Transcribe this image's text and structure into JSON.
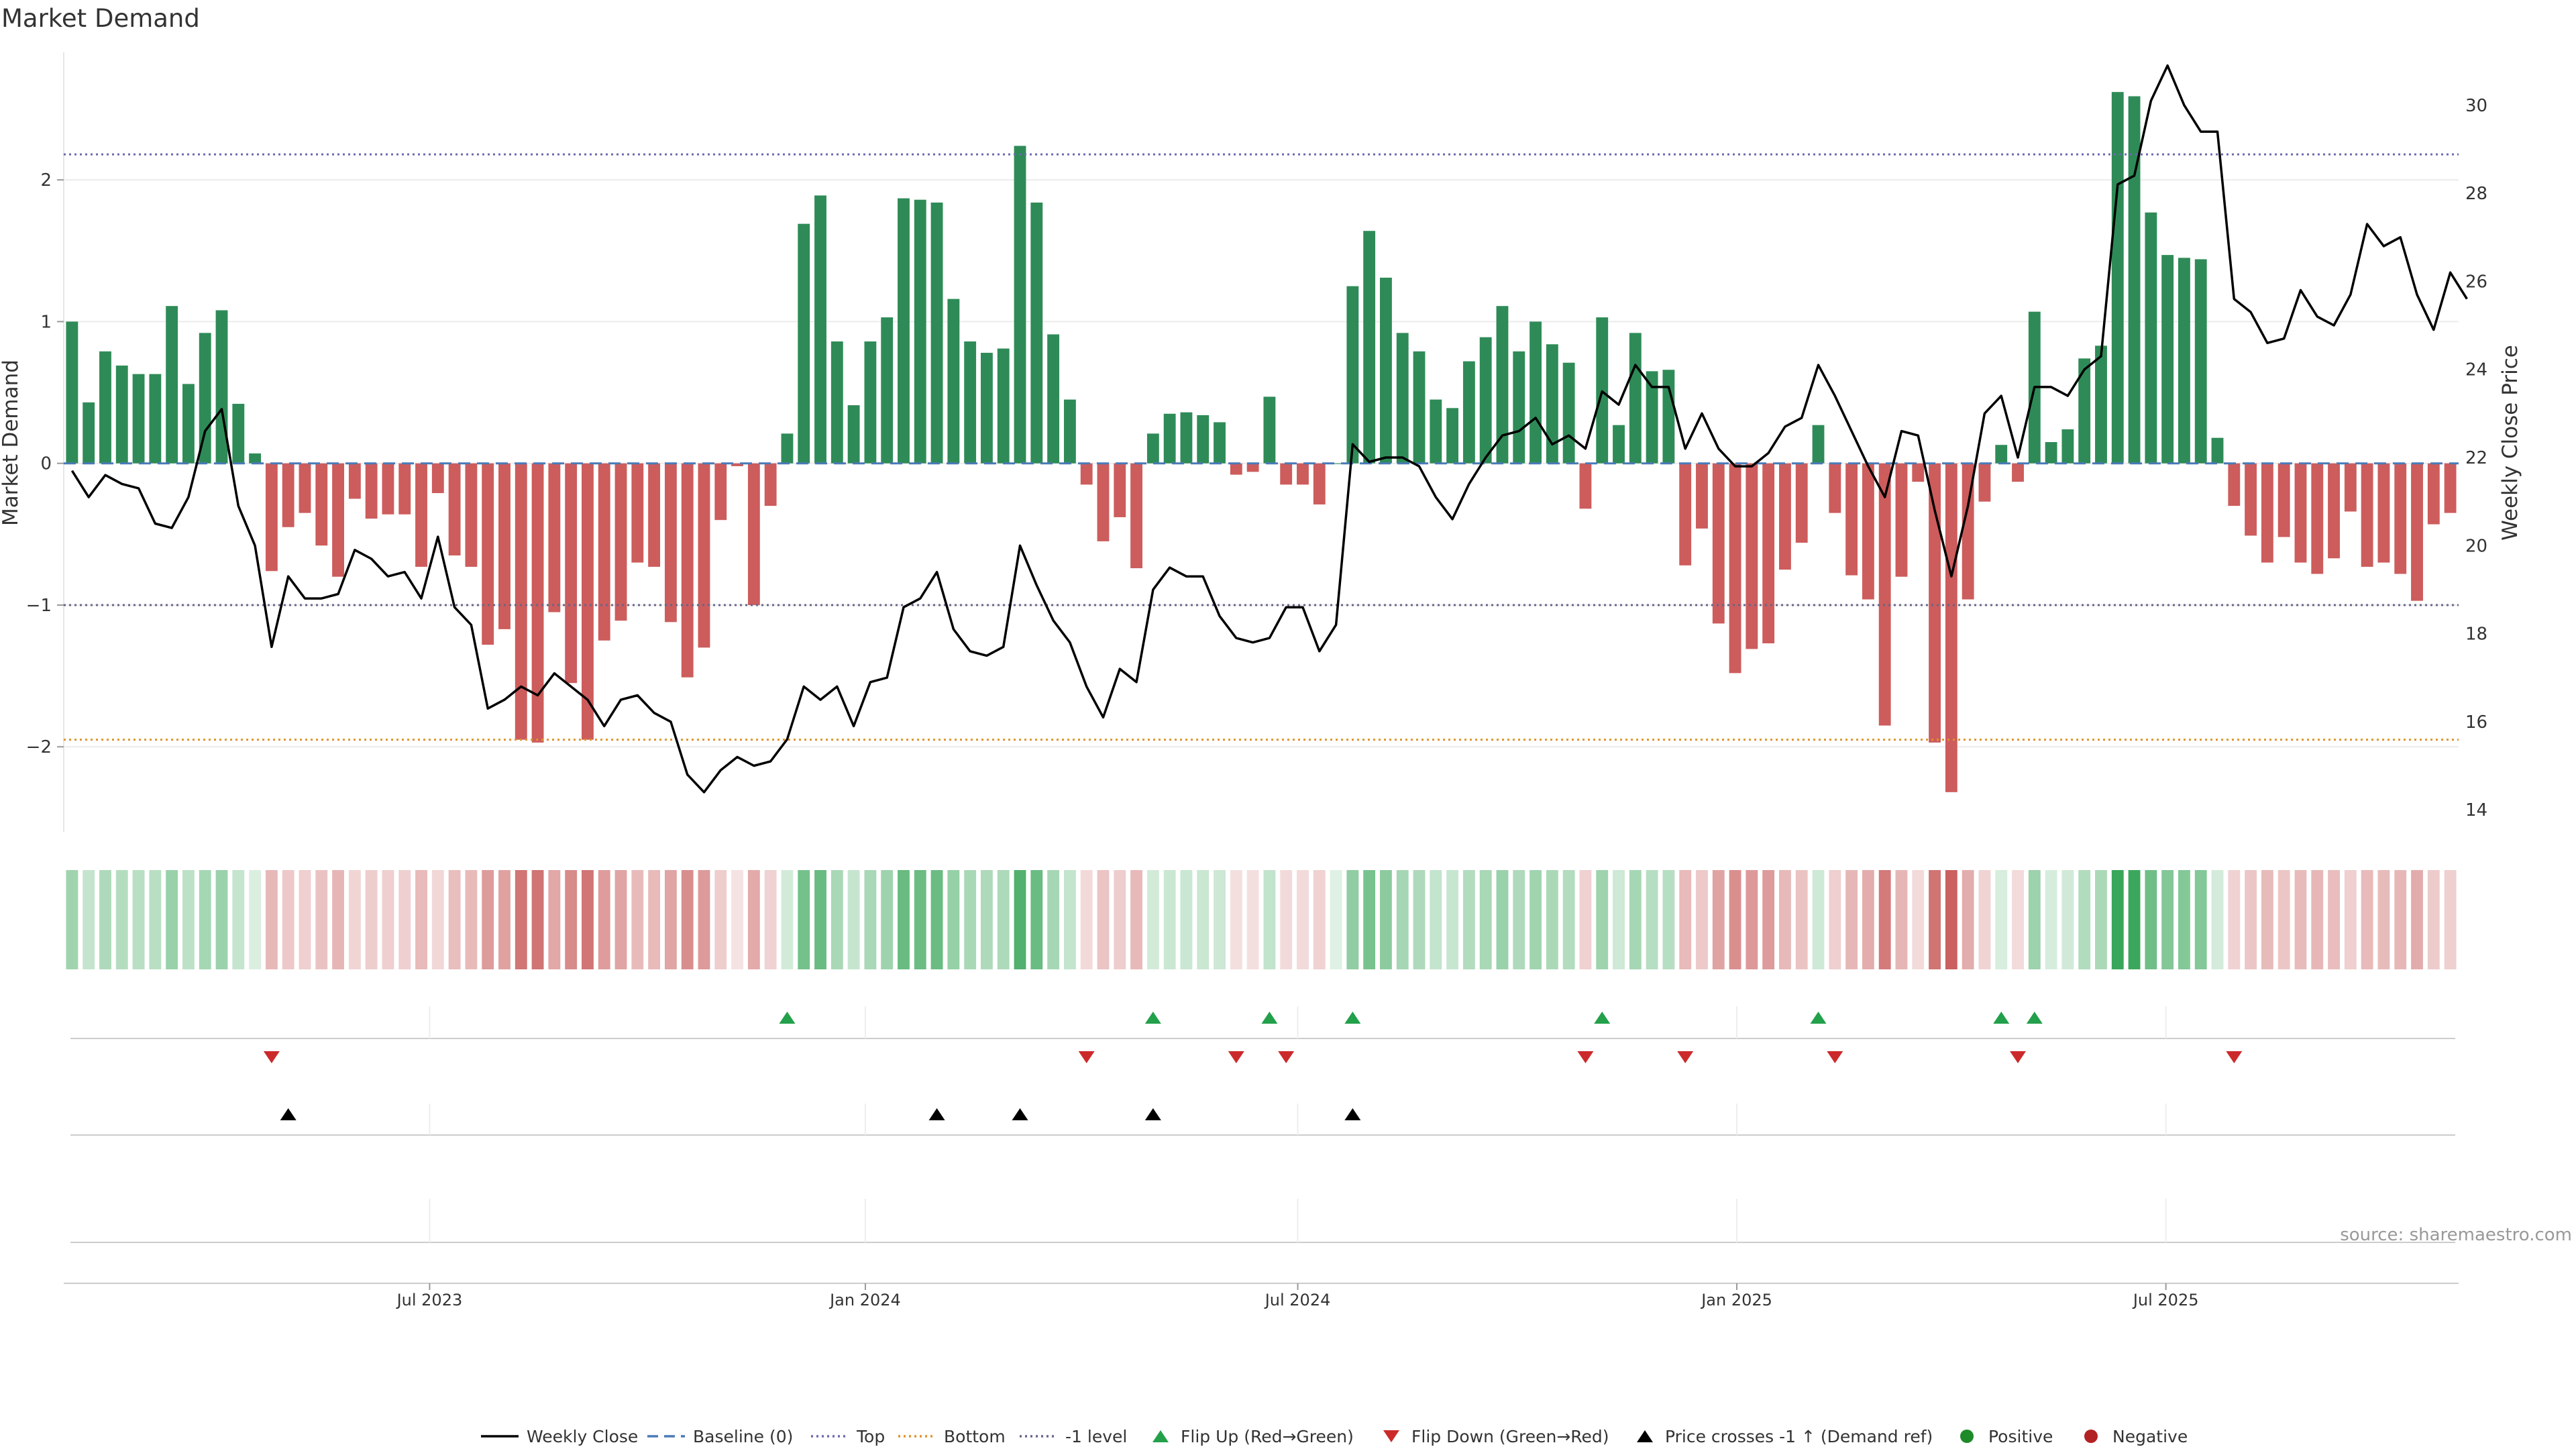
{
  "chart_data": {
    "type": "bar",
    "title": "Market Demand",
    "ylabel_left": "Market Demand",
    "ylabel_right": "Weekly Close Price",
    "ylim_left": [
      -2.6,
      2.9
    ],
    "ylim_right": [
      13.5,
      31.2
    ],
    "yticks_left": [
      {
        "v": 2,
        "label": "2"
      },
      {
        "v": 1,
        "label": "1"
      },
      {
        "v": 0,
        "label": "0"
      },
      {
        "v": -1,
        "label": "−1"
      },
      {
        "v": -2,
        "label": "−2"
      }
    ],
    "yticks_right": [
      {
        "v": 30,
        "label": "30"
      },
      {
        "v": 28,
        "label": "28"
      },
      {
        "v": 26,
        "label": "26"
      },
      {
        "v": 24,
        "label": "24"
      },
      {
        "v": 22,
        "label": "22"
      },
      {
        "v": 20,
        "label": "20"
      },
      {
        "v": 18,
        "label": "18"
      },
      {
        "v": 16,
        "label": "16"
      },
      {
        "v": 14,
        "label": "14"
      }
    ],
    "top_level": 2.18,
    "bottom_level": -1.95,
    "minus_one_level": -1,
    "x_ticks": [
      {
        "i": 21.5,
        "label": "Jul 2023"
      },
      {
        "i": 47.7,
        "label": "Jan 2024"
      },
      {
        "i": 73.7,
        "label": "Jul 2024"
      },
      {
        "i": 100.1,
        "label": "Jan 2025"
      },
      {
        "i": 125.9,
        "label": "Jul 2025"
      }
    ],
    "demand": [
      1.0,
      0.43,
      0.79,
      0.69,
      0.63,
      0.63,
      1.11,
      0.56,
      0.92,
      1.08,
      0.42,
      0.07,
      -0.76,
      -0.45,
      -0.35,
      -0.58,
      -0.8,
      -0.25,
      -0.39,
      -0.36,
      -0.36,
      -0.73,
      -0.21,
      -0.65,
      -0.73,
      -1.28,
      -1.17,
      -1.95,
      -1.97,
      -1.05,
      -1.55,
      -1.95,
      -1.25,
      -1.11,
      -0.7,
      -0.73,
      -1.12,
      -1.51,
      -1.3,
      -0.4,
      -0.02,
      -1.0,
      -0.3,
      0.21,
      1.69,
      1.89,
      0.86,
      0.41,
      0.86,
      1.03,
      1.87,
      1.86,
      1.84,
      1.16,
      0.86,
      0.78,
      0.81,
      2.24,
      1.84,
      0.91,
      0.45,
      -0.15,
      -0.55,
      -0.38,
      -0.74,
      0.21,
      0.35,
      0.36,
      0.34,
      0.29,
      -0.08,
      -0.06,
      0.47,
      -0.15,
      -0.15,
      -0.29,
      0.0,
      1.25,
      1.64,
      1.31,
      0.92,
      0.79,
      0.45,
      0.39,
      0.72,
      0.89,
      1.11,
      0.79,
      1.0,
      0.84,
      0.71,
      -0.32,
      1.03,
      0.27,
      0.92,
      0.65,
      0.66,
      -0.72,
      -0.46,
      -1.13,
      -1.48,
      -1.31,
      -1.27,
      -0.75,
      -0.56,
      0.27,
      -0.35,
      -0.79,
      -0.96,
      -1.85,
      -0.8,
      -0.13,
      -1.97,
      -2.32,
      -0.96,
      -0.27,
      0.13,
      -0.13,
      1.07,
      0.15,
      0.24,
      0.74,
      0.83,
      2.62,
      2.59,
      1.77,
      1.47,
      1.45,
      1.44,
      0.18,
      -0.3,
      -0.51,
      -0.7,
      -0.52,
      -0.7,
      -0.78,
      -0.67,
      -0.34,
      -0.73,
      -0.7,
      -0.78,
      -0.97,
      -0.43,
      -0.35
    ],
    "weekly_close": [
      21.7,
      21.1,
      21.6,
      21.4,
      21.3,
      20.5,
      20.4,
      21.1,
      22.6,
      23.1,
      20.9,
      20.0,
      17.7,
      19.3,
      18.8,
      18.8,
      18.9,
      19.9,
      19.7,
      19.3,
      19.4,
      18.8,
      20.2,
      18.6,
      18.2,
      16.3,
      16.5,
      16.8,
      16.6,
      17.1,
      16.8,
      16.5,
      15.9,
      16.5,
      16.6,
      16.2,
      16.0,
      14.8,
      14.4,
      14.9,
      15.2,
      15.0,
      15.1,
      15.6,
      16.8,
      16.5,
      16.8,
      15.9,
      16.9,
      17.0,
      18.6,
      18.8,
      19.4,
      18.1,
      17.6,
      17.5,
      17.7,
      20.0,
      19.1,
      18.3,
      17.8,
      16.8,
      16.1,
      17.2,
      16.9,
      19.0,
      19.5,
      19.3,
      19.3,
      18.4,
      17.9,
      17.8,
      17.9,
      18.6,
      18.6,
      17.6,
      18.2,
      22.3,
      21.9,
      22.0,
      22.0,
      21.8,
      21.1,
      20.6,
      21.4,
      22.0,
      22.5,
      22.6,
      22.9,
      22.3,
      22.5,
      22.2,
      23.5,
      23.2,
      24.1,
      23.6,
      23.6,
      22.2,
      23.0,
      22.2,
      21.8,
      21.8,
      22.1,
      22.7,
      22.9,
      24.1,
      23.4,
      22.6,
      21.8,
      21.1,
      22.6,
      22.5,
      20.8,
      19.3,
      20.9,
      23.0,
      23.4,
      22.0,
      23.6,
      23.6,
      23.4,
      24.0,
      24.3,
      28.2,
      28.4,
      30.1,
      30.9,
      30.0,
      29.4,
      29.4,
      25.6,
      25.3,
      24.6,
      24.7,
      25.8,
      25.2,
      25.0,
      25.7,
      27.3,
      26.8,
      27.0,
      25.7,
      24.9,
      26.2,
      25.6
    ],
    "flip_up": [
      43,
      65,
      72,
      77,
      92,
      105,
      116,
      118
    ],
    "flip_down": [
      12,
      61,
      70,
      73,
      91,
      97,
      106,
      117,
      130
    ],
    "price_cross": [
      13,
      52,
      57,
      65,
      77
    ],
    "legend": [
      {
        "type": "line",
        "color": "#000000",
        "label": "Weekly Close"
      },
      {
        "type": "dash",
        "color": "#4a7ab8",
        "label": "Baseline (0)"
      },
      {
        "type": "dot",
        "color": "#6a6ab0",
        "label": "Top"
      },
      {
        "type": "dot",
        "color": "#e0922a",
        "label": "Bottom"
      },
      {
        "type": "dot",
        "color": "#666688",
        "label": "-1 level"
      },
      {
        "type": "tri-up",
        "color": "#22a04a",
        "label": "Flip Up (Red→Green)"
      },
      {
        "type": "tri-down",
        "color": "#cc2a2a",
        "label": "Flip Down (Green→Red)"
      },
      {
        "type": "tri-up",
        "color": "#000000",
        "label": "Price crosses -1 ↑ (Demand ref)"
      },
      {
        "type": "circle",
        "color": "#1f8a2a",
        "label": "Positive"
      },
      {
        "type": "circle",
        "color": "#b22222",
        "label": "Negative"
      }
    ],
    "source": "source: sharemaestro.com",
    "colors": {
      "positive": "#2e8b57",
      "negative": "#cd5c5c",
      "strip_pos": "#3aa65a",
      "strip_neg": "#c44f4f",
      "up": "#22a04a",
      "down": "#cc2a2a",
      "price": "#000000",
      "top": "#6a6ab0",
      "bottom": "#e0922a",
      "minus_one": "#666688",
      "baseline": "#4a7ab8"
    }
  }
}
